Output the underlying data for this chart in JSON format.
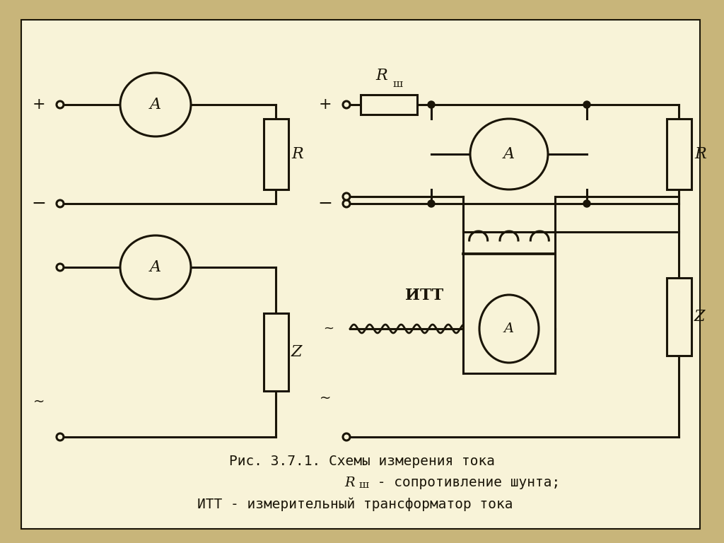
{
  "bg_outer": "#c8b57a",
  "bg_inner": "#f8f3d8",
  "line_color": "#1a1508",
  "title_line1": "Рис. 3.7.1. Схемы измерения тока",
  "title_line2": "Rши - сопротивление шунта;",
  "title_line3": "ИТТ - измерительный трансформатор тока",
  "font_size_caption": 14,
  "lw": 2.2,
  "fig_w": 10.24,
  "fig_h": 7.68,
  "dpi": 100
}
